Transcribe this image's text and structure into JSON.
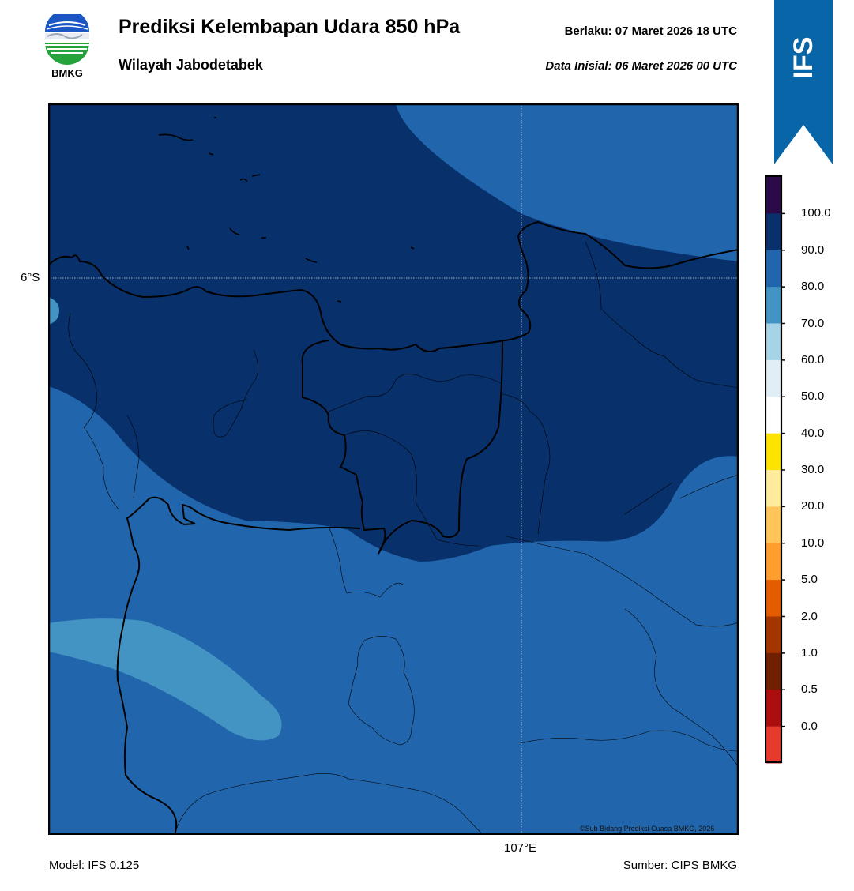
{
  "header": {
    "title": "Prediksi Kelembapan Udara 850 hPa",
    "subtitle": "Wilayah Jabodetabek",
    "valid": "Berlaku:  07 Maret 2026 18 UTC",
    "initial": "Data Inisial:  06 Maret 2026 00 UTC"
  },
  "logo": {
    "text": "BMKG"
  },
  "ribbon": {
    "text": "IFS",
    "color": "#0866a8"
  },
  "map": {
    "lat_label": "6°S",
    "lon_label": "107°E",
    "credit": "©Sub Bidang Prediksi Cuaca BMKG, 2026"
  },
  "footer": {
    "model": "Model: IFS 0.125",
    "source": "Sumber: CIPS BMKG"
  },
  "colorbar": {
    "labels": [
      "100.0",
      "90.0",
      "80.0",
      "70.0",
      "60.0",
      "50.0",
      "40.0",
      "30.0",
      "20.0",
      "10.0",
      "5.0",
      "2.0",
      "1.0",
      "0.5",
      "0.0"
    ],
    "colors_top_to_bottom": [
      "#2c0a4a",
      "#08306b",
      "#2166ac",
      "#4393c3",
      "#a6d4e6",
      "#e1eef6",
      "#ffffff",
      "#ffe300",
      "#ffeb9c",
      "#ffc55a",
      "#ff9e2e",
      "#e55b00",
      "#a33500",
      "#6e2000",
      "#aa0e0e",
      "#e83a2c"
    ]
  },
  "legend_colors": {
    "very_humid": "#08306b",
    "humid": "#2166ac",
    "moist": "#4393c3"
  }
}
